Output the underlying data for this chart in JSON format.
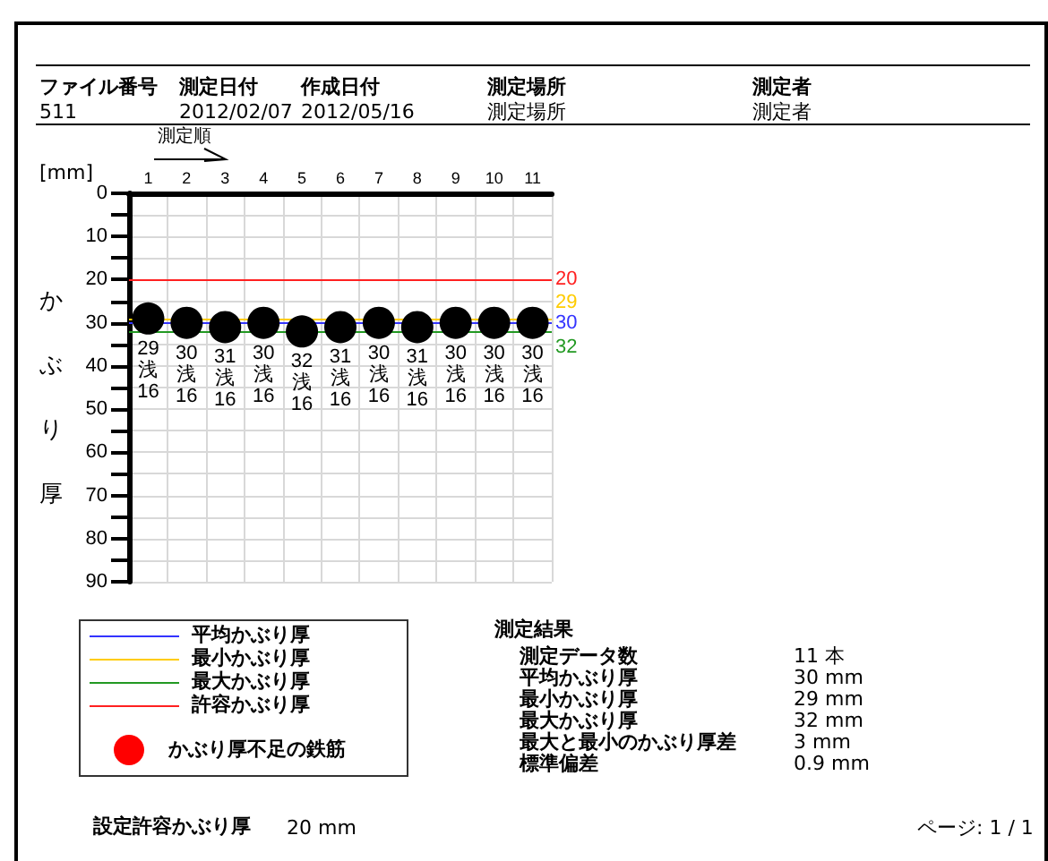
{
  "chart_data": {
    "type": "scatter",
    "xlabel": "測定順",
    "ylabel": "かぶり厚",
    "categories": [
      "1",
      "2",
      "3",
      "4",
      "5",
      "6",
      "7",
      "8",
      "9",
      "10",
      "11"
    ],
    "series": [
      {
        "color": "#000000",
        "values": [
          29,
          30,
          31,
          30,
          32,
          31,
          30,
          31,
          30,
          30,
          30
        ],
        "value_labels": [
          "29\n浅\n16",
          "30\n浅\n16",
          "31\n浅\n16",
          "30\n浅\n16",
          "32\n浅\n16",
          "31\n浅\n16",
          "30\n浅\n16",
          "31\n浅\n16",
          "30\n浅\n16",
          "30\n浅\n16",
          "30\n浅\n16"
        ]
      }
    ],
    "marker": "circle",
    "ylim": [
      90,
      0
    ],
    "yticks": [
      0,
      {
        "value": 5,
        "label": null
      },
      10,
      {
        "value": 15,
        "label": null
      },
      20,
      {
        "value": 25,
        "label": null
      },
      30,
      {
        "value": 35,
        "label": null
      },
      40,
      {
        "value": 45,
        "label": null
      },
      50,
      {
        "value": 55,
        "label": null
      },
      60,
      {
        "value": 65,
        "label": null
      },
      70,
      {
        "value": 75,
        "label": null
      },
      80,
      {
        "value": 85,
        "label": null
      },
      90
    ],
    "grid": true,
    "ref_lines": [
      {
        "axis": "y",
        "value": 30,
        "label": "30",
        "color": "#3333ff"
      },
      {
        "axis": "y",
        "value": 29,
        "label": "29",
        "color": "#ffcc00"
      },
      {
        "axis": "y",
        "value": 32,
        "label": "32",
        "color": "#229922"
      },
      {
        "axis": "y",
        "value": 20,
        "label": "20",
        "color": "#ff2020"
      }
    ],
    "annotations": [
      "ファイル番号",
      "511",
      "測定日付",
      "2012/02/07",
      "作成日付",
      "2012/05/16",
      "測定場所",
      "測定場所",
      "測定者",
      "測定者",
      "[mm]",
      "平均かぶり厚",
      "最小かぶり厚",
      "最大かぶり厚",
      "許容かぶり厚",
      "かぶり厚不足の鉄筋",
      "測定結果",
      "測定データ数",
      "11 本",
      "平均かぶり厚",
      "30 mm",
      "最小かぶり厚",
      "29 mm",
      "最大かぶり厚",
      "32 mm",
      "最大と最小のかぶり厚差",
      "3 mm",
      "標準偏差",
      "0.9 mm",
      "設定許容かぶり厚",
      "20 mm",
      "ページ: 1 / 1"
    ]
  }
}
